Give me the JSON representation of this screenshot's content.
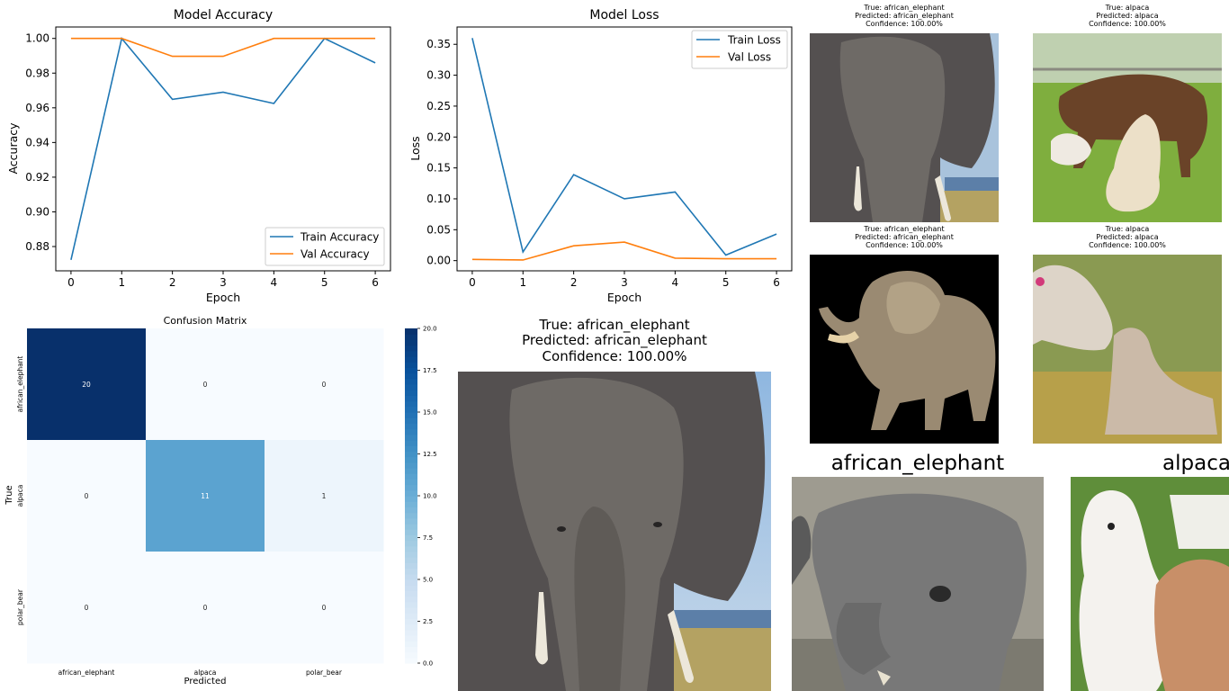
{
  "chart_data": [
    {
      "type": "line",
      "title": "Model Accuracy",
      "xlabel": "Epoch",
      "ylabel": "Accuracy",
      "x": [
        0,
        1,
        2,
        3,
        4,
        5,
        6
      ],
      "xticks": [
        "0",
        "1",
        "2",
        "3",
        "4",
        "5",
        "6"
      ],
      "yticks": [
        "0.88",
        "0.90",
        "0.92",
        "0.94",
        "0.96",
        "0.98",
        "1.00"
      ],
      "ylim": [
        0.866,
        1.0066
      ],
      "grid": false,
      "legend_position": "lower-right",
      "series": [
        {
          "name": "Train Accuracy",
          "color": "#1f77b4",
          "values": [
            0.8723,
            1.0,
            0.9649,
            0.969,
            0.9625,
            1.0,
            0.9859
          ]
        },
        {
          "name": "Val Accuracy",
          "color": "#ff7f0e",
          "values": [
            1.0,
            1.0,
            0.9897,
            0.9897,
            1.0,
            1.0,
            1.0
          ]
        }
      ]
    },
    {
      "type": "line",
      "title": "Model Loss",
      "xlabel": "Epoch",
      "ylabel": "Loss",
      "x": [
        0,
        1,
        2,
        3,
        4,
        5,
        6
      ],
      "xticks": [
        "0",
        "1",
        "2",
        "3",
        "4",
        "5",
        "6"
      ],
      "yticks": [
        "0.00",
        "0.05",
        "0.10",
        "0.15",
        "0.20",
        "0.25",
        "0.30",
        "0.35"
      ],
      "ylim": [
        -0.0165,
        0.378
      ],
      "grid": false,
      "legend_position": "upper-right",
      "series": [
        {
          "name": "Train Loss",
          "color": "#1f77b4",
          "values": [
            0.36,
            0.014,
            0.139,
            0.1,
            0.111,
            0.009,
            0.043
          ]
        },
        {
          "name": "Val Loss",
          "color": "#ff7f0e",
          "values": [
            0.002,
            0.001,
            0.024,
            0.03,
            0.004,
            0.003,
            0.003
          ]
        }
      ]
    },
    {
      "type": "heatmap",
      "title": "Confusion Matrix",
      "xlabel": "Predicted",
      "ylabel": "True",
      "x_categories": [
        "african_elephant",
        "alpaca",
        "polar_bear"
      ],
      "y_categories": [
        "african_elephant",
        "alpaca",
        "polar_bear"
      ],
      "values": [
        [
          20,
          0,
          0
        ],
        [
          0,
          11,
          1
        ],
        [
          0,
          0,
          0
        ]
      ],
      "colorbar": {
        "range": [
          0,
          20
        ],
        "ticks": [
          "0.0",
          "2.5",
          "5.0",
          "7.5",
          "10.0",
          "12.5",
          "15.0",
          "17.5",
          "20.0"
        ],
        "colormap": "Blues"
      }
    }
  ],
  "main_prediction": {
    "true_line": "True: african_elephant",
    "pred_line": "Predicted: african_elephant",
    "conf_line": "Confidence: 100.00%"
  },
  "thumbnails": [
    {
      "true_line": "True: african_elephant",
      "pred_line": "Predicted: african_elephant",
      "conf_line": "Confidence: 100.00%"
    },
    {
      "true_line": "True: alpaca",
      "pred_line": "Predicted: alpaca",
      "conf_line": "Confidence: 100.00%"
    },
    {
      "true_line": "True: african_elephant",
      "pred_line": "Predicted: african_elephant",
      "conf_line": "Confidence: 100.00%"
    },
    {
      "true_line": "True: alpaca",
      "pred_line": "Predicted: alpaca",
      "conf_line": "Confidence: 100.00%"
    }
  ],
  "samples": [
    {
      "label": "african_elephant"
    },
    {
      "label": "alpaca"
    }
  ]
}
